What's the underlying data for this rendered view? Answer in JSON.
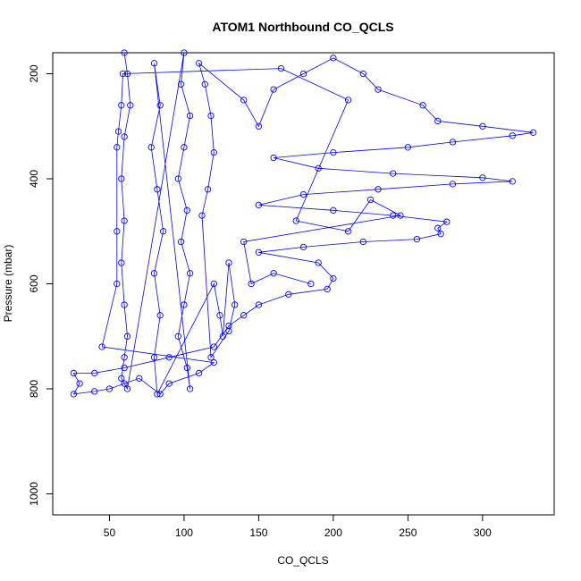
{
  "chart_data": {
    "type": "scatter",
    "title": "ATOM1 Northbound CO_QCLS",
    "xlabel": "CO_QCLS",
    "ylabel": "Pressure (mbar)",
    "xlim": [
      12,
      348
    ],
    "ylim": [
      1040,
      160
    ],
    "y_reversed": true,
    "x_ticks": [
      50,
      100,
      150,
      200,
      250,
      300
    ],
    "y_ticks": [
      200,
      400,
      600,
      800,
      1000
    ],
    "marker": "open-circle",
    "connected": true,
    "color": "#0000ff",
    "grid": false,
    "series": [
      {
        "values": [
          {
            "x": 60,
            "y": 160
          },
          {
            "x": 62,
            "y": 200
          },
          {
            "x": 64,
            "y": 260
          },
          {
            "x": 60,
            "y": 320
          },
          {
            "x": 58,
            "y": 400
          },
          {
            "x": 60,
            "y": 480
          },
          {
            "x": 58,
            "y": 560
          },
          {
            "x": 60,
            "y": 640
          },
          {
            "x": 62,
            "y": 700
          },
          {
            "x": 60,
            "y": 740
          },
          {
            "x": 58,
            "y": 780
          },
          {
            "x": 62,
            "y": 800
          },
          {
            "x": 100,
            "y": 160
          },
          {
            "x": 98,
            "y": 220
          },
          {
            "x": 104,
            "y": 280
          },
          {
            "x": 100,
            "y": 340
          },
          {
            "x": 96,
            "y": 400
          },
          {
            "x": 102,
            "y": 460
          },
          {
            "x": 98,
            "y": 520
          },
          {
            "x": 104,
            "y": 580
          },
          {
            "x": 100,
            "y": 640
          },
          {
            "x": 96,
            "y": 700
          },
          {
            "x": 102,
            "y": 760
          },
          {
            "x": 104,
            "y": 800
          },
          {
            "x": 80,
            "y": 180
          },
          {
            "x": 84,
            "y": 260
          },
          {
            "x": 78,
            "y": 340
          },
          {
            "x": 82,
            "y": 420
          },
          {
            "x": 86,
            "y": 500
          },
          {
            "x": 80,
            "y": 580
          },
          {
            "x": 84,
            "y": 660
          },
          {
            "x": 80,
            "y": 740
          },
          {
            "x": 82,
            "y": 810
          },
          {
            "x": 120,
            "y": 600
          },
          {
            "x": 124,
            "y": 660
          },
          {
            "x": 126,
            "y": 700
          },
          {
            "x": 130,
            "y": 560
          },
          {
            "x": 134,
            "y": 640
          },
          {
            "x": 130,
            "y": 690
          },
          {
            "x": 118,
            "y": 740
          },
          {
            "x": 112,
            "y": 470
          },
          {
            "x": 116,
            "y": 420
          },
          {
            "x": 120,
            "y": 350
          },
          {
            "x": 118,
            "y": 280
          },
          {
            "x": 114,
            "y": 220
          },
          {
            "x": 110,
            "y": 180
          },
          {
            "x": 140,
            "y": 250
          },
          {
            "x": 150,
            "y": 300
          },
          {
            "x": 160,
            "y": 230
          },
          {
            "x": 180,
            "y": 200
          },
          {
            "x": 200,
            "y": 170
          },
          {
            "x": 220,
            "y": 200
          },
          {
            "x": 230,
            "y": 230
          },
          {
            "x": 260,
            "y": 260
          },
          {
            "x": 270,
            "y": 290
          },
          {
            "x": 300,
            "y": 300
          },
          {
            "x": 334,
            "y": 312
          },
          {
            "x": 320,
            "y": 318
          },
          {
            "x": 280,
            "y": 330
          },
          {
            "x": 250,
            "y": 340
          },
          {
            "x": 200,
            "y": 350
          },
          {
            "x": 160,
            "y": 360
          },
          {
            "x": 190,
            "y": 380
          },
          {
            "x": 240,
            "y": 390
          },
          {
            "x": 300,
            "y": 398
          },
          {
            "x": 320,
            "y": 405
          },
          {
            "x": 280,
            "y": 410
          },
          {
            "x": 230,
            "y": 420
          },
          {
            "x": 180,
            "y": 430
          },
          {
            "x": 150,
            "y": 450
          },
          {
            "x": 200,
            "y": 460
          },
          {
            "x": 240,
            "y": 470
          },
          {
            "x": 276,
            "y": 482
          },
          {
            "x": 270,
            "y": 494
          },
          {
            "x": 272,
            "y": 505
          },
          {
            "x": 256,
            "y": 515
          },
          {
            "x": 220,
            "y": 520
          },
          {
            "x": 180,
            "y": 530
          },
          {
            "x": 150,
            "y": 540
          },
          {
            "x": 190,
            "y": 560
          },
          {
            "x": 200,
            "y": 590
          },
          {
            "x": 196,
            "y": 610
          },
          {
            "x": 170,
            "y": 620
          },
          {
            "x": 150,
            "y": 640
          },
          {
            "x": 140,
            "y": 660
          },
          {
            "x": 130,
            "y": 680
          },
          {
            "x": 120,
            "y": 720
          },
          {
            "x": 90,
            "y": 740
          },
          {
            "x": 60,
            "y": 760
          },
          {
            "x": 40,
            "y": 770
          },
          {
            "x": 26,
            "y": 770
          },
          {
            "x": 30,
            "y": 790
          },
          {
            "x": 26,
            "y": 810
          },
          {
            "x": 40,
            "y": 805
          },
          {
            "x": 50,
            "y": 800
          },
          {
            "x": 60,
            "y": 790
          },
          {
            "x": 70,
            "y": 780
          },
          {
            "x": 84,
            "y": 810
          },
          {
            "x": 90,
            "y": 790
          },
          {
            "x": 110,
            "y": 770
          },
          {
            "x": 120,
            "y": 750
          },
          {
            "x": 45,
            "y": 720
          },
          {
            "x": 55,
            "y": 600
          },
          {
            "x": 55,
            "y": 500
          },
          {
            "x": 55,
            "y": 340
          },
          {
            "x": 56,
            "y": 310
          },
          {
            "x": 58,
            "y": 260
          },
          {
            "x": 59,
            "y": 200
          },
          {
            "x": 165,
            "y": 190
          },
          {
            "x": 210,
            "y": 250
          },
          {
            "x": 175,
            "y": 480
          },
          {
            "x": 210,
            "y": 500
          },
          {
            "x": 225,
            "y": 440
          },
          {
            "x": 245,
            "y": 470
          },
          {
            "x": 140,
            "y": 520
          },
          {
            "x": 145,
            "y": 600
          },
          {
            "x": 160,
            "y": 580
          },
          {
            "x": 185,
            "y": 600
          }
        ]
      }
    ]
  }
}
